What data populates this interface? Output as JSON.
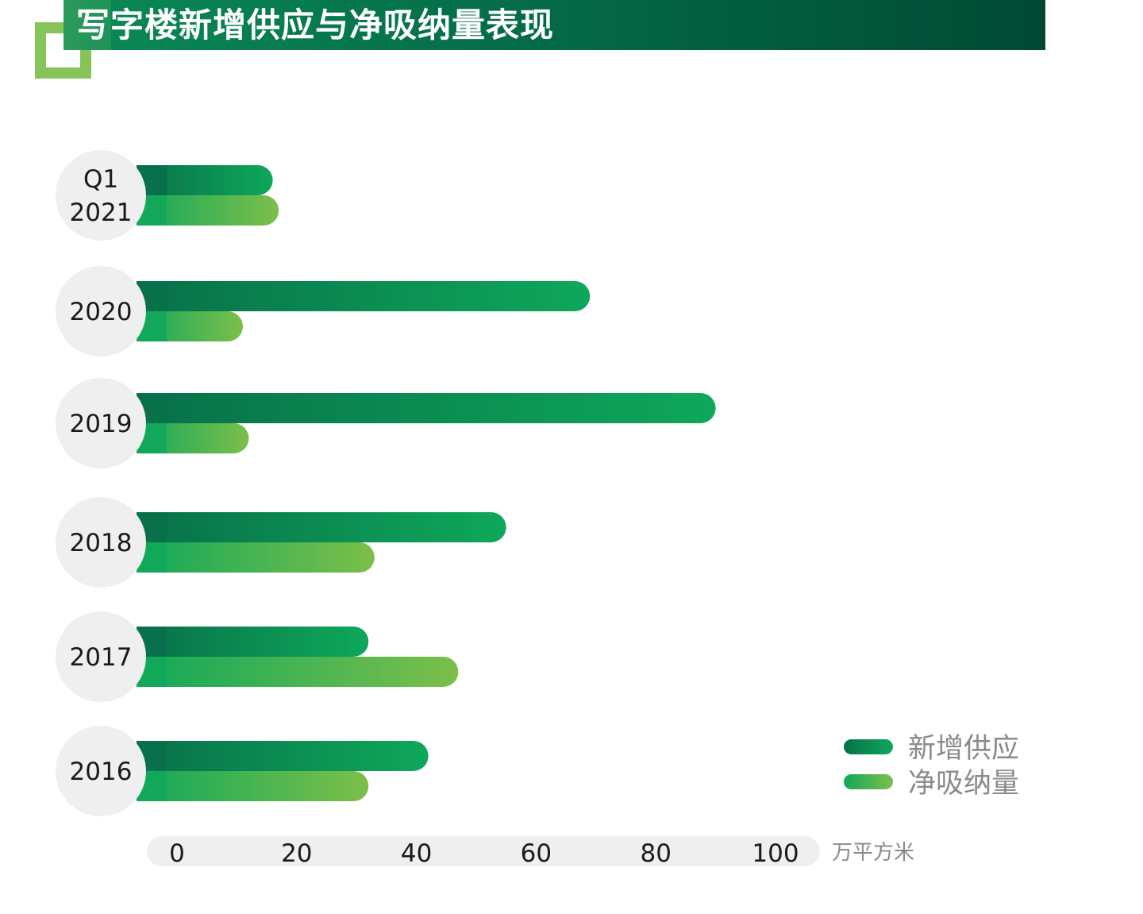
{
  "title": "写字楼新增供应与净吸纳量表现",
  "chart_data": {
    "type": "bar",
    "orientation": "horizontal",
    "categories": [
      [
        "Q1",
        "2021"
      ],
      [
        "2020"
      ],
      [
        "2019"
      ],
      [
        "2018"
      ],
      [
        "2017"
      ],
      [
        "2016"
      ]
    ],
    "series": [
      {
        "name": "新增供应",
        "values": [
          16,
          69,
          90,
          55,
          32,
          42
        ],
        "color_start": "#08704a",
        "color_end": "#0ea85a"
      },
      {
        "name": "净吸纳量",
        "values": [
          17,
          11,
          12,
          33,
          47,
          32
        ],
        "color_start": "#12a85a",
        "color_end": "#7cbf4a"
      }
    ],
    "x_ticks": [
      "0",
      "20",
      "40",
      "60",
      "80",
      "100"
    ],
    "xlim": [
      0,
      100
    ],
    "x_unit": "万平方米",
    "grid": false,
    "legend_position": "bottom-right"
  }
}
